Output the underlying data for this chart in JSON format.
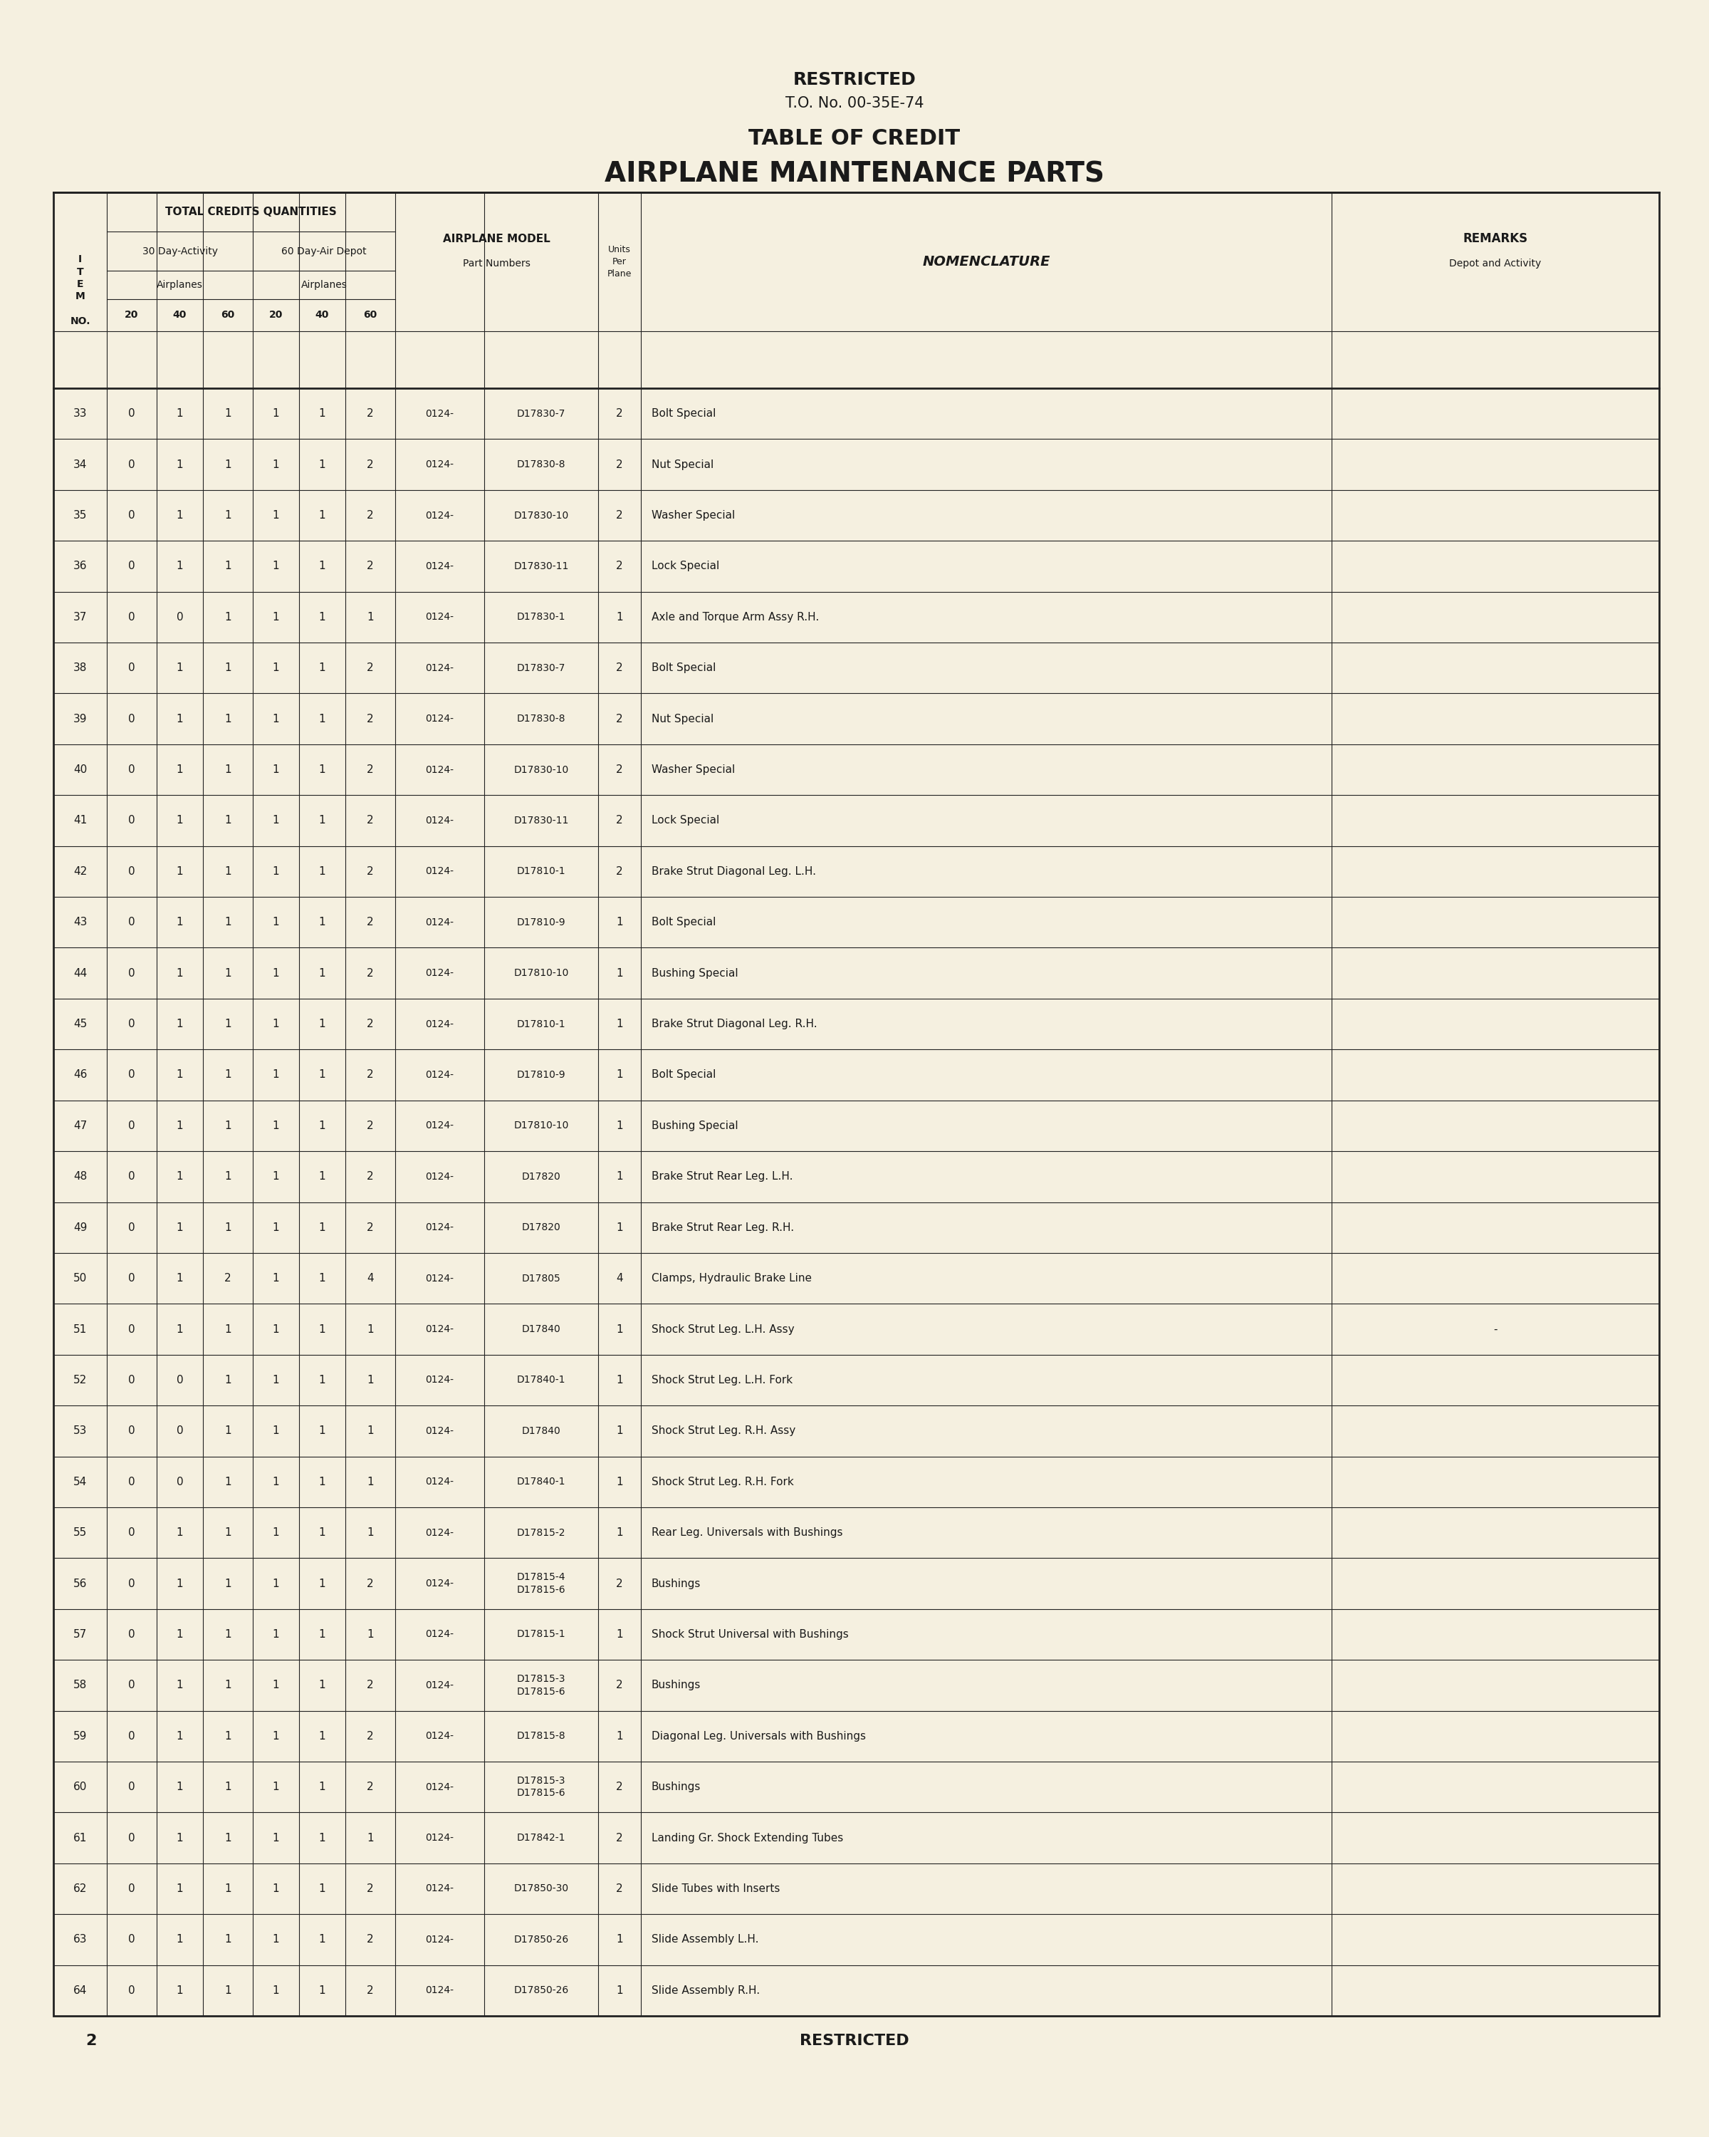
{
  "bg_color": "#f5f0e0",
  "text_color": "#1a1a1a",
  "header_top": "RESTRICTED",
  "header_to": "T.O. No. 00-35E-74",
  "header_title1": "TABLE OF CREDIT",
  "header_title2": "AIRPLANE MAINTENANCE PARTS",
  "footer_page": "2",
  "footer_restricted": "RESTRICTED",
  "col_headers": {
    "item_no": "I\nT\nE\nM\n\nNO.",
    "total_credits": "TOTAL CREDITS QUANTITIES",
    "thirty_day": "30 Day-Activity",
    "sixty_day": "60 Day-Air Depot",
    "airplanes1": "Airplanes",
    "airplanes2": "Airplanes",
    "sub_cols1": [
      "20",
      "40",
      "60"
    ],
    "sub_cols2": [
      "20",
      "40",
      "60"
    ],
    "airplane_model": "AIRPLANE MODEL\nPart Numbers",
    "units": "Units\nPer\nPlane",
    "nomenclature": "NOMENCLATURE",
    "remarks": "REMARKS\nDepot and Activity"
  },
  "rows": [
    {
      "item": "33",
      "vals": [
        "0",
        "1",
        "1",
        "1",
        "1",
        "2"
      ],
      "model": "0124-",
      "part": "D17830-7",
      "units": "2",
      "nomenclature": "Bolt Special",
      "remarks": ""
    },
    {
      "item": "34",
      "vals": [
        "0",
        "1",
        "1",
        "1",
        "1",
        "2"
      ],
      "model": "0124-",
      "part": "D17830-8",
      "units": "2",
      "nomenclature": "Nut Special",
      "remarks": ""
    },
    {
      "item": "35",
      "vals": [
        "0",
        "1",
        "1",
        "1",
        "1",
        "2"
      ],
      "model": "0124-",
      "part": "D17830-10",
      "units": "2",
      "nomenclature": "Washer Special",
      "remarks": ""
    },
    {
      "item": "36",
      "vals": [
        "0",
        "1",
        "1",
        "1",
        "1",
        "2"
      ],
      "model": "0124-",
      "part": "D17830-11",
      "units": "2",
      "nomenclature": "Lock Special",
      "remarks": ""
    },
    {
      "item": "37",
      "vals": [
        "0",
        "0",
        "1",
        "1",
        "1",
        "1"
      ],
      "model": "0124-",
      "part": "D17830-1",
      "units": "1",
      "nomenclature": "Axle and Torque Arm Assy R.H.",
      "remarks": ""
    },
    {
      "item": "38",
      "vals": [
        "0",
        "1",
        "1",
        "1",
        "1",
        "2"
      ],
      "model": "0124-",
      "part": "D17830-7",
      "units": "2",
      "nomenclature": "Bolt Special",
      "remarks": ""
    },
    {
      "item": "39",
      "vals": [
        "0",
        "1",
        "1",
        "1",
        "1",
        "2"
      ],
      "model": "0124-",
      "part": "D17830-8",
      "units": "2",
      "nomenclature": "Nut Special",
      "remarks": ""
    },
    {
      "item": "40",
      "vals": [
        "0",
        "1",
        "1",
        "1",
        "1",
        "2"
      ],
      "model": "0124-",
      "part": "D17830-10",
      "units": "2",
      "nomenclature": "Washer Special",
      "remarks": ""
    },
    {
      "item": "41",
      "vals": [
        "0",
        "1",
        "1",
        "1",
        "1",
        "2"
      ],
      "model": "0124-",
      "part": "D17830-11",
      "units": "2",
      "nomenclature": "Lock Special",
      "remarks": ""
    },
    {
      "item": "42",
      "vals": [
        "0",
        "1",
        "1",
        "1",
        "1",
        "2"
      ],
      "model": "0124-",
      "part": "D17810-1",
      "units": "2",
      "nomenclature": "Brake Strut Diagonal Leg. L.H.",
      "remarks": ""
    },
    {
      "item": "43",
      "vals": [
        "0",
        "1",
        "1",
        "1",
        "1",
        "2"
      ],
      "model": "0124-",
      "part": "D17810-9",
      "units": "1",
      "nomenclature": "Bolt Special",
      "remarks": ""
    },
    {
      "item": "44",
      "vals": [
        "0",
        "1",
        "1",
        "1",
        "1",
        "2"
      ],
      "model": "0124-",
      "part": "D17810-10",
      "units": "1",
      "nomenclature": "Bushing Special",
      "remarks": ""
    },
    {
      "item": "45",
      "vals": [
        "0",
        "1",
        "1",
        "1",
        "1",
        "2"
      ],
      "model": "0124-",
      "part": "D17810-1",
      "units": "1",
      "nomenclature": "Brake Strut Diagonal Leg. R.H.",
      "remarks": ""
    },
    {
      "item": "46",
      "vals": [
        "0",
        "1",
        "1",
        "1",
        "1",
        "2"
      ],
      "model": "0124-",
      "part": "D17810-9",
      "units": "1",
      "nomenclature": "Bolt Special",
      "remarks": ""
    },
    {
      "item": "47",
      "vals": [
        "0",
        "1",
        "1",
        "1",
        "1",
        "2"
      ],
      "model": "0124-",
      "part": "D17810-10",
      "units": "1",
      "nomenclature": "Bushing Special",
      "remarks": ""
    },
    {
      "item": "48",
      "vals": [
        "0",
        "1",
        "1",
        "1",
        "1",
        "2"
      ],
      "model": "0124-",
      "part": "D17820",
      "units": "1",
      "nomenclature": "Brake Strut Rear Leg. L.H.",
      "remarks": ""
    },
    {
      "item": "49",
      "vals": [
        "0",
        "1",
        "1",
        "1",
        "1",
        "2"
      ],
      "model": "0124-",
      "part": "D17820",
      "units": "1",
      "nomenclature": "Brake Strut Rear Leg. R.H.",
      "remarks": ""
    },
    {
      "item": "50",
      "vals": [
        "0",
        "1",
        "2",
        "1",
        "1",
        "4"
      ],
      "model": "0124-",
      "part": "D17805",
      "units": "4",
      "nomenclature": "Clamps, Hydraulic Brake Line",
      "remarks": ""
    },
    {
      "item": "51",
      "vals": [
        "0",
        "1",
        "1",
        "1",
        "1",
        "1"
      ],
      "model": "0124-",
      "part": "D17840",
      "units": "1",
      "nomenclature": "Shock Strut Leg. L.H. Assy",
      "remarks": "-"
    },
    {
      "item": "52",
      "vals": [
        "0",
        "0",
        "1",
        "1",
        "1",
        "1"
      ],
      "model": "0124-",
      "part": "D17840-1",
      "units": "1",
      "nomenclature": "Shock Strut Leg. L.H. Fork",
      "remarks": ""
    },
    {
      "item": "53",
      "vals": [
        "0",
        "0",
        "1",
        "1",
        "1",
        "1"
      ],
      "model": "0124-",
      "part": "D17840",
      "units": "1",
      "nomenclature": "Shock Strut Leg. R.H. Assy",
      "remarks": ""
    },
    {
      "item": "54",
      "vals": [
        "0",
        "0",
        "1",
        "1",
        "1",
        "1"
      ],
      "model": "0124-",
      "part": "D17840-1",
      "units": "1",
      "nomenclature": "Shock Strut Leg. R.H. Fork",
      "remarks": ""
    },
    {
      "item": "55",
      "vals": [
        "0",
        "1",
        "1",
        "1",
        "1",
        "1"
      ],
      "model": "0124-",
      "part": "D17815-2",
      "units": "1",
      "nomenclature": "Rear Leg. Universals with Bushings",
      "remarks": ""
    },
    {
      "item": "56",
      "vals": [
        "0",
        "1",
        "1",
        "1",
        "1",
        "2"
      ],
      "model": "0124-",
      "part": "D17815-4\nD17815-6",
      "units": "2",
      "nomenclature": "Bushings",
      "remarks": ""
    },
    {
      "item": "57",
      "vals": [
        "0",
        "1",
        "1",
        "1",
        "1",
        "1"
      ],
      "model": "0124-",
      "part": "D17815-1",
      "units": "1",
      "nomenclature": "Shock Strut Universal with Bushings",
      "remarks": ""
    },
    {
      "item": "58",
      "vals": [
        "0",
        "1",
        "1",
        "1",
        "1",
        "2"
      ],
      "model": "0124-",
      "part": "D17815-3\nD17815-6",
      "units": "2",
      "nomenclature": "Bushings",
      "remarks": ""
    },
    {
      "item": "59",
      "vals": [
        "0",
        "1",
        "1",
        "1",
        "1",
        "2"
      ],
      "model": "0124-",
      "part": "D17815-8",
      "units": "1",
      "nomenclature": "Diagonal Leg. Universals with Bushings",
      "remarks": ""
    },
    {
      "item": "60",
      "vals": [
        "0",
        "1",
        "1",
        "1",
        "1",
        "2"
      ],
      "model": "0124-",
      "part": "D17815-3\nD17815-6",
      "units": "2",
      "nomenclature": "Bushings",
      "remarks": ""
    },
    {
      "item": "61",
      "vals": [
        "0",
        "1",
        "1",
        "1",
        "1",
        "1"
      ],
      "model": "0124-",
      "part": "D17842-1",
      "units": "2",
      "nomenclature": "Landing Gr. Shock Extending Tubes",
      "remarks": ""
    },
    {
      "item": "62",
      "vals": [
        "0",
        "1",
        "1",
        "1",
        "1",
        "2"
      ],
      "model": "0124-",
      "part": "D17850-30",
      "units": "2",
      "nomenclature": "Slide Tubes with Inserts",
      "remarks": ""
    },
    {
      "item": "63",
      "vals": [
        "0",
        "1",
        "1",
        "1",
        "1",
        "2"
      ],
      "model": "0124-",
      "part": "D17850-26",
      "units": "1",
      "nomenclature": "Slide Assembly L.H.",
      "remarks": ""
    },
    {
      "item": "64",
      "vals": [
        "0",
        "1",
        "1",
        "1",
        "1",
        "2"
      ],
      "model": "0124-",
      "part": "D17850-26",
      "units": "1",
      "nomenclature": "Slide Assembly R.H.",
      "remarks": ""
    }
  ]
}
